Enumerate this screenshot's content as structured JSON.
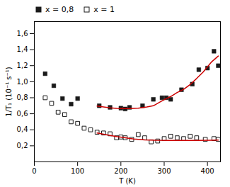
{
  "chart_data": {
    "type": "scatter",
    "xlabel": "T (K)",
    "ylabel": "1/T₁ (10⁻¹ s⁻¹)",
    "xlim": [
      0,
      430
    ],
    "ylim": [
      0.0,
      1.75
    ],
    "xticks": [
      0,
      100,
      200,
      300,
      400
    ],
    "yticks": [
      {
        "value": 0.2,
        "label": "0,2"
      },
      {
        "value": 0.4,
        "label": "0,4"
      },
      {
        "value": 0.6,
        "label": "0,6"
      },
      {
        "value": 0.8,
        "label": "0,8"
      },
      {
        "value": 1.0,
        "label": "1,0"
      },
      {
        "value": 1.2,
        "label": "1,2"
      },
      {
        "value": 1.4,
        "label": "1,4"
      },
      {
        "value": 1.6,
        "label": "1,6"
      }
    ],
    "legend": "upper left",
    "series": [
      {
        "name": "x = 0,8",
        "type": "scatter",
        "marker": "square",
        "color": "#1a1a1a",
        "x": [
          25,
          45,
          65,
          85,
          100,
          150,
          175,
          200,
          210,
          220,
          250,
          275,
          295,
          305,
          315,
          340,
          365,
          380,
          400,
          415,
          425
        ],
        "values": [
          1.1,
          0.95,
          0.79,
          0.72,
          0.79,
          0.7,
          0.68,
          0.67,
          0.66,
          0.68,
          0.7,
          0.78,
          0.8,
          0.8,
          0.78,
          0.9,
          0.97,
          1.15,
          1.17,
          1.38,
          1.2
        ]
      },
      {
        "name": "x = 1",
        "type": "scatter",
        "marker": "square_open",
        "color": "#1a1a1a",
        "x": [
          25,
          40,
          55,
          70,
          85,
          100,
          115,
          130,
          145,
          160,
          175,
          190,
          200,
          210,
          225,
          240,
          255,
          270,
          285,
          300,
          315,
          330,
          345,
          360,
          375,
          395,
          415,
          425
        ],
        "values": [
          0.8,
          0.73,
          0.62,
          0.59,
          0.5,
          0.48,
          0.42,
          0.4,
          0.37,
          0.36,
          0.35,
          0.3,
          0.31,
          0.3,
          0.28,
          0.34,
          0.3,
          0.25,
          0.26,
          0.29,
          0.32,
          0.3,
          0.29,
          0.32,
          0.3,
          0.28,
          0.29,
          0.28
        ]
      },
      {
        "type": "line",
        "line_style": "solid",
        "color": "#cc0000",
        "x": [
          145,
          160,
          175,
          190,
          200,
          210,
          220,
          240,
          260,
          275,
          290,
          305,
          315,
          330,
          345,
          360,
          375,
          390,
          410,
          425
        ],
        "values": [
          0.695,
          0.685,
          0.675,
          0.668,
          0.665,
          0.664,
          0.665,
          0.67,
          0.685,
          0.7,
          0.745,
          0.79,
          0.815,
          0.865,
          0.905,
          0.965,
          1.04,
          1.12,
          1.25,
          1.32
        ]
      },
      {
        "type": "line",
        "line_style": "solid",
        "color": "#cc0000",
        "x": [
          145,
          160,
          175,
          190,
          210,
          230,
          255,
          280,
          310,
          340,
          375,
          410,
          425
        ],
        "values": [
          0.36,
          0.345,
          0.33,
          0.315,
          0.3,
          0.285,
          0.275,
          0.27,
          0.268,
          0.267,
          0.268,
          0.27,
          0.272
        ]
      }
    ]
  }
}
